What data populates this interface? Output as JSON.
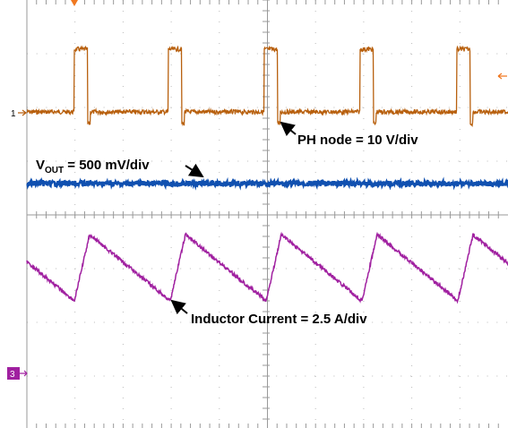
{
  "markers": {
    "channel_1": "1",
    "channel_3": "3"
  },
  "annotations": {
    "ph_node": "PH node = 10 V/div",
    "vout": {
      "symbol": "V",
      "subscript": "OUT",
      "scale": " = 500 mV/div"
    },
    "inductor": "Inductor Current = 2.5 A/div"
  }
}
